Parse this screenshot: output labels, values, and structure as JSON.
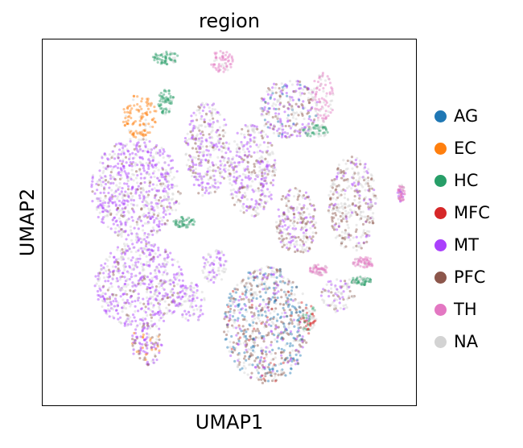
{
  "chart_data": {
    "type": "scatter",
    "title": "region",
    "xlabel": "UMAP1",
    "ylabel": "UMAP2",
    "grid": false,
    "legend_position": "right",
    "categories": [
      {
        "name": "AG",
        "color": "#1f77b4"
      },
      {
        "name": "EC",
        "color": "#ff7f0e"
      },
      {
        "name": "HC",
        "color": "#279e68"
      },
      {
        "name": "MFC",
        "color": "#d62728"
      },
      {
        "name": "MT",
        "color": "#aa40fc"
      },
      {
        "name": "PFC",
        "color": "#8c564b"
      },
      {
        "name": "TH",
        "color": "#e377c2"
      },
      {
        "name": "NA",
        "color": "#d3d3d3"
      }
    ],
    "clusters": [
      {
        "x": 3.3,
        "y": 9.5,
        "rx": 0.35,
        "ry": 0.18,
        "mix": {
          "HC": 0.9,
          "NA": 0.1
        }
      },
      {
        "x": 4.8,
        "y": 9.4,
        "rx": 0.3,
        "ry": 0.3,
        "mix": {
          "TH": 0.8,
          "NA": 0.2
        }
      },
      {
        "x": 2.6,
        "y": 7.9,
        "rx": 0.45,
        "ry": 0.6,
        "mix": {
          "EC": 0.85,
          "NA": 0.15
        }
      },
      {
        "x": 3.3,
        "y": 8.3,
        "rx": 0.22,
        "ry": 0.35,
        "mix": {
          "HC": 0.9,
          "NA": 0.1
        }
      },
      {
        "x": 6.6,
        "y": 8.1,
        "rx": 0.8,
        "ry": 0.8,
        "mix": {
          "MT": 0.35,
          "PFC": 0.25,
          "NA": 0.3,
          "AG": 0.1
        }
      },
      {
        "x": 7.5,
        "y": 8.4,
        "rx": 0.3,
        "ry": 0.7,
        "mix": {
          "TH": 0.7,
          "NA": 0.3
        }
      },
      {
        "x": 7.3,
        "y": 7.5,
        "rx": 0.35,
        "ry": 0.2,
        "mix": {
          "HC": 0.6,
          "NA": 0.4
        }
      },
      {
        "x": 4.4,
        "y": 7.0,
        "rx": 0.6,
        "ry": 1.3,
        "mix": {
          "MT": 0.4,
          "PFC": 0.2,
          "NA": 0.4
        }
      },
      {
        "x": 5.6,
        "y": 6.4,
        "rx": 0.65,
        "ry": 1.3,
        "mix": {
          "MT": 0.4,
          "PFC": 0.2,
          "NA": 0.4
        }
      },
      {
        "x": 2.5,
        "y": 5.9,
        "rx": 1.2,
        "ry": 1.4,
        "mix": {
          "MT": 0.55,
          "PFC": 0.1,
          "NA": 0.35
        }
      },
      {
        "x": 6.8,
        "y": 5.0,
        "rx": 0.55,
        "ry": 0.95,
        "mix": {
          "PFC": 0.35,
          "MT": 0.25,
          "NA": 0.4
        }
      },
      {
        "x": 8.3,
        "y": 5.5,
        "rx": 0.65,
        "ry": 1.3,
        "mix": {
          "PFC": 0.35,
          "NA": 0.5,
          "MT": 0.15
        }
      },
      {
        "x": 9.6,
        "y": 5.8,
        "rx": 0.1,
        "ry": 0.25,
        "mix": {
          "TH": 0.6,
          "MT": 0.2,
          "NA": 0.2
        }
      },
      {
        "x": 2.6,
        "y": 3.3,
        "rx": 1.2,
        "ry": 1.2,
        "mix": {
          "MT": 0.55,
          "PFC": 0.1,
          "NA": 0.35
        }
      },
      {
        "x": 3.8,
        "y": 5.0,
        "rx": 0.3,
        "ry": 0.15,
        "mix": {
          "HC": 0.8,
          "NA": 0.2
        }
      },
      {
        "x": 4.6,
        "y": 3.8,
        "rx": 0.35,
        "ry": 0.5,
        "mix": {
          "MT": 0.5,
          "NA": 0.5
        }
      },
      {
        "x": 4.0,
        "y": 2.8,
        "rx": 0.35,
        "ry": 0.55,
        "mix": {
          "MT": 0.5,
          "NA": 0.5
        }
      },
      {
        "x": 2.8,
        "y": 1.7,
        "rx": 0.45,
        "ry": 0.6,
        "mix": {
          "MT": 0.35,
          "PFC": 0.2,
          "EC": 0.15,
          "NA": 0.3
        }
      },
      {
        "x": 6.0,
        "y": 2.2,
        "rx": 1.15,
        "ry": 1.6,
        "mix": {
          "AG": 0.25,
          "PFC": 0.3,
          "MT": 0.15,
          "MFC": 0.05,
          "NA": 0.25
        }
      },
      {
        "x": 7.1,
        "y": 2.4,
        "rx": 0.25,
        "ry": 0.35,
        "mix": {
          "MFC": 0.3,
          "HC": 0.3,
          "NA": 0.4
        }
      },
      {
        "x": 7.4,
        "y": 3.7,
        "rx": 0.25,
        "ry": 0.15,
        "mix": {
          "TH": 0.8,
          "NA": 0.2
        }
      },
      {
        "x": 8.6,
        "y": 3.9,
        "rx": 0.3,
        "ry": 0.15,
        "mix": {
          "TH": 0.8,
          "NA": 0.2
        }
      },
      {
        "x": 7.9,
        "y": 3.0,
        "rx": 0.45,
        "ry": 0.45,
        "mix": {
          "MT": 0.3,
          "PFC": 0.2,
          "NA": 0.5
        }
      },
      {
        "x": 8.5,
        "y": 3.4,
        "rx": 0.3,
        "ry": 0.12,
        "mix": {
          "HC": 0.8,
          "NA": 0.2
        }
      }
    ],
    "xlim": [
      0,
      10
    ],
    "ylim": [
      0,
      10
    ]
  }
}
